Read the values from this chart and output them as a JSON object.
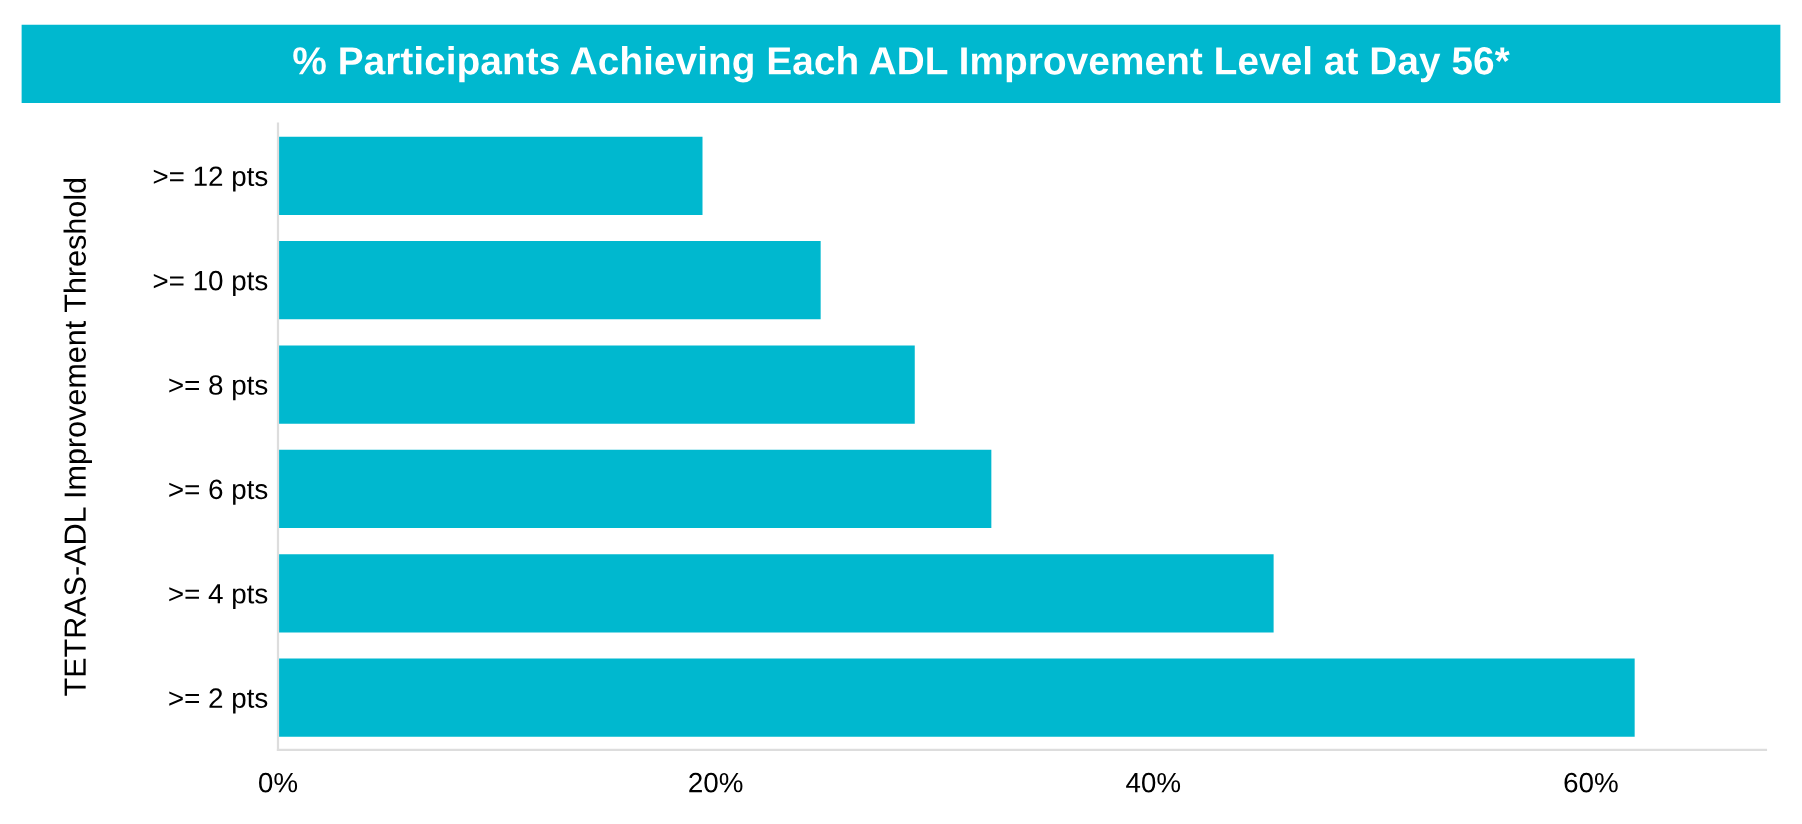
{
  "chart_data": {
    "type": "bar",
    "orientation": "horizontal",
    "title": "% Participants Achieving Each ADL Improvement Level at Day 56*",
    "ylabel": "TETRAS-ADL Improvement Threshold",
    "categories": [
      ">= 12 pts",
      ">= 10 pts",
      ">= 8 pts",
      ">= 6 pts",
      ">= 4 pts",
      ">= 2 pts"
    ],
    "values": [
      19.4,
      24.8,
      29.1,
      32.6,
      45.5,
      62.0
    ],
    "color": "#00b8cf",
    "xlim": [
      0,
      68
    ],
    "xticks": [
      {
        "value": 0,
        "label": "0%"
      },
      {
        "value": 20,
        "label": "20%"
      },
      {
        "value": 40,
        "label": "40%"
      },
      {
        "value": 60,
        "label": "60%"
      }
    ],
    "grid": false,
    "legend": false
  }
}
